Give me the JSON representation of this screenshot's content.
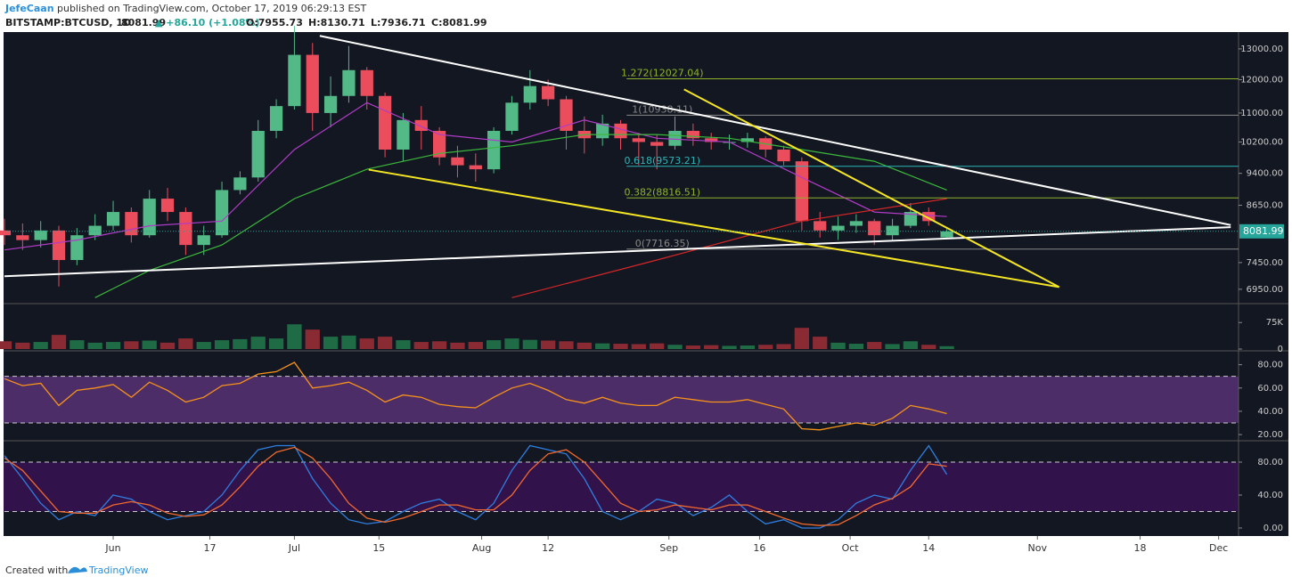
{
  "header": {
    "author": "JefeCaan",
    "published": "published on TradingView.com, October 17, 2019 06:29:13 EST",
    "symbol": "BITSTAMP:BTCUSD, 1D",
    "price": "8081.99",
    "change": "▲ +86.10 (+1.08%)",
    "ohlc": [
      "O:7955.73",
      "H:8130.71",
      "L:7936.71",
      "C:8081.99"
    ]
  },
  "chart_data": [
    {
      "type": "candlestick",
      "log_scale": true,
      "up_color": "#53b987",
      "down_color": "#eb4d5c",
      "xlim": [
        0,
        204
      ],
      "ylim": [
        6710,
        13520
      ],
      "xticks": [
        {
          "value": 18,
          "label": "Jun"
        },
        {
          "value": 34,
          "label": "17"
        },
        {
          "value": 48,
          "label": "Jul"
        },
        {
          "value": 62,
          "label": "15"
        },
        {
          "value": 79,
          "label": "Aug"
        },
        {
          "value": 90,
          "label": "12"
        },
        {
          "value": 110,
          "label": "Sep"
        },
        {
          "value": 125,
          "label": "16"
        },
        {
          "value": 140,
          "label": "Oct"
        },
        {
          "value": 153,
          "label": "14"
        },
        {
          "value": 171,
          "label": "Nov"
        },
        {
          "value": 188,
          "label": "18"
        },
        {
          "value": 201,
          "label": "Dec"
        }
      ],
      "yticks": [
        {
          "value": 13000,
          "label": "13000.00"
        },
        {
          "value": 12000,
          "label": "12000.00"
        },
        {
          "value": 11000,
          "label": "11000.00"
        },
        {
          "value": 10200,
          "label": "10200.00"
        },
        {
          "value": 9400,
          "label": "9400.00"
        },
        {
          "value": 8650,
          "label": "8650.00"
        },
        {
          "value": 7450,
          "label": "7450.00"
        },
        {
          "value": 6950,
          "label": "6950.00"
        }
      ],
      "x": [
        0,
        3,
        6,
        9,
        12,
        15,
        18,
        21,
        24,
        27,
        30,
        33,
        36,
        39,
        42,
        45,
        48,
        51,
        54,
        57,
        60,
        63,
        66,
        69,
        72,
        75,
        78,
        81,
        84,
        87,
        90,
        93,
        96,
        99,
        102,
        105,
        108,
        111,
        114,
        117,
        120,
        123,
        126,
        129,
        132,
        135,
        138,
        141,
        144,
        147,
        150,
        153,
        156
      ],
      "open": [
        8100,
        8000,
        7900,
        8100,
        7500,
        8000,
        8200,
        8500,
        8000,
        8800,
        8500,
        7800,
        8000,
        9000,
        9300,
        10500,
        11200,
        12800,
        11000,
        11500,
        12300,
        11500,
        10000,
        10800,
        10500,
        9800,
        9600,
        9500,
        10500,
        11300,
        11800,
        11400,
        10500,
        10300,
        10700,
        10300,
        10200,
        10100,
        10500,
        10300,
        10200,
        10200,
        10300,
        10000,
        9700,
        8300,
        8100,
        8200,
        8300,
        8000,
        8200,
        8500,
        7955.73
      ],
      "high": [
        8350,
        8250,
        8300,
        8200,
        8150,
        8450,
        8750,
        8600,
        9000,
        9050,
        8600,
        8200,
        9200,
        9450,
        10800,
        11400,
        13800,
        13200,
        12100,
        13100,
        12400,
        11600,
        11000,
        11200,
        10600,
        10100,
        9900,
        10600,
        11500,
        12300,
        12000,
        11500,
        10900,
        10950,
        10800,
        10450,
        10400,
        10900,
        10700,
        10450,
        10400,
        10450,
        10350,
        10100,
        9800,
        8500,
        8400,
        8450,
        8350,
        8350,
        8700,
        8600,
        8130.71
      ],
      "low": [
        7800,
        7700,
        7750,
        7000,
        7400,
        7900,
        8100,
        7850,
        7950,
        8300,
        7600,
        7600,
        7950,
        8900,
        9200,
        10300,
        11100,
        10500,
        10600,
        11300,
        11100,
        9800,
        9700,
        10000,
        9600,
        9300,
        9200,
        9400,
        10400,
        11100,
        11200,
        10000,
        9900,
        10100,
        10000,
        9600,
        9500,
        10000,
        10100,
        10000,
        10000,
        10050,
        9800,
        9600,
        8100,
        7950,
        7900,
        8050,
        7800,
        7900,
        8150,
        8200,
        7936.71
      ],
      "close": [
        8000,
        7900,
        8100,
        7500,
        8000,
        8200,
        8500,
        8000,
        8800,
        8500,
        7800,
        8000,
        9000,
        9300,
        10500,
        11200,
        12800,
        11000,
        11500,
        12300,
        11500,
        10000,
        10800,
        10500,
        9800,
        9600,
        9500,
        10500,
        11300,
        11800,
        11400,
        10500,
        10300,
        10700,
        10300,
        10200,
        10100,
        10500,
        10300,
        10200,
        10200,
        10300,
        10000,
        9700,
        8300,
        8100,
        8200,
        8300,
        8000,
        8200,
        8500,
        8300,
        8081.99
      ],
      "last_price": 8081.99,
      "last_price_color": "#26a69a",
      "moving_averages": [
        {
          "color": "#b03cc7",
          "x": [
            0,
            12,
            24,
            36,
            48,
            60,
            72,
            84,
            96,
            108,
            120,
            132,
            144,
            156
          ],
          "values": [
            7700,
            7900,
            8200,
            8300,
            10000,
            11300,
            10400,
            10200,
            10800,
            10300,
            10200,
            9300,
            8500,
            8400
          ]
        },
        {
          "color": "#3cb83c",
          "x": [
            15,
            24,
            36,
            48,
            60,
            72,
            84,
            96,
            108,
            120,
            132,
            144,
            156
          ],
          "values": [
            6800,
            7300,
            7800,
            8800,
            9500,
            9900,
            10100,
            10400,
            10400,
            10300,
            10000,
            9700,
            9000
          ]
        },
        {
          "color": "#d62728",
          "x": [
            84,
            108,
            132,
            156
          ],
          "values": [
            6800,
            7500,
            8300,
            8800
          ]
        }
      ],
      "trendlines": [
        {
          "color": "#ffffff",
          "points": [
            [
              52.2,
              13450
            ],
            [
              203,
              8216
            ]
          ]
        },
        {
          "color": "#ffffff",
          "points": [
            [
              0,
              7190
            ],
            [
              203,
              8170
            ]
          ]
        },
        {
          "color": "#f5e625",
          "points": [
            [
              60.3,
              9490
            ],
            [
              174.6,
              6990
            ]
          ]
        },
        {
          "color": "#f5e625",
          "points": [
            [
              112.5,
              11700
            ],
            [
              174.6,
              6990
            ]
          ]
        }
      ],
      "fib_start": 103,
      "fib_levels": [
        {
          "label": "1.272(12027.04)",
          "value": 12027.04,
          "color": "#8fb32a"
        },
        {
          "label": "1(10938.11)",
          "value": 10938.11,
          "color": "#888888"
        },
        {
          "label": "0.618(9573.21)",
          "value": 9573.21,
          "color": "#2bb5b5"
        },
        {
          "label": "0.382(8816.51)",
          "value": 8816.51,
          "color": "#8fb32a"
        },
        {
          "label": "0(7716.35)",
          "value": 7716.35,
          "color": "#888888"
        }
      ]
    },
    {
      "type": "volume",
      "ylim": [
        0,
        126000
      ],
      "yticks": [
        0,
        {
          "value": 75000,
          "label": "75K"
        }
      ],
      "values": [
        22000,
        18000,
        20000,
        40000,
        25000,
        18000,
        20000,
        22000,
        24000,
        18000,
        30000,
        20000,
        25000,
        28000,
        35000,
        30000,
        70000,
        55000,
        35000,
        38000,
        30000,
        35000,
        25000,
        20000,
        22000,
        18000,
        20000,
        25000,
        30000,
        26000,
        24000,
        22000,
        18000,
        16000,
        15000,
        14000,
        16000,
        12000,
        10000,
        11000,
        9000,
        10000,
        12000,
        14000,
        60000,
        35000,
        18000,
        15000,
        20000,
        14000,
        22000,
        12000,
        8000
      ]
    },
    {
      "type": "line",
      "ylim": [
        17,
        90.4
      ],
      "band": [
        30,
        70
      ],
      "band_color": "#7b3fa3",
      "yticks": [
        {
          "value": 80,
          "label": "80.00"
        },
        {
          "value": 60,
          "label": "60.00"
        },
        {
          "value": 40,
          "label": "40.00"
        },
        {
          "value": 20,
          "label": "20.00"
        }
      ],
      "series": [
        {
          "color": "#f7931a",
          "values": [
            68,
            62,
            64,
            45,
            58,
            60,
            63,
            52,
            65,
            58,
            48,
            52,
            62,
            64,
            72,
            74,
            82,
            60,
            62,
            65,
            58,
            48,
            54,
            52,
            46,
            44,
            43,
            52,
            60,
            64,
            58,
            50,
            47,
            52,
            47,
            45,
            45,
            52,
            50,
            48,
            48,
            50,
            46,
            42,
            25,
            24,
            27,
            30,
            28,
            34,
            45,
            42,
            38
          ]
        }
      ]
    },
    {
      "type": "line",
      "ylim": [
        -7.6,
        103.8
      ],
      "band": [
        20,
        80
      ],
      "band_color": "#4b0f6e",
      "yticks": [
        {
          "value": 80,
          "label": "80.00"
        },
        {
          "value": 40,
          "label": "40.00"
        },
        {
          "value": 0,
          "label": "0.00"
        }
      ],
      "series": [
        {
          "color": "#2f7fe0",
          "values": [
            88,
            60,
            30,
            10,
            20,
            15,
            40,
            35,
            20,
            10,
            15,
            20,
            40,
            70,
            95,
            100,
            100,
            60,
            30,
            10,
            5,
            8,
            20,
            30,
            35,
            20,
            10,
            30,
            70,
            100,
            95,
            90,
            60,
            20,
            10,
            20,
            35,
            30,
            15,
            25,
            40,
            20,
            5,
            10,
            0,
            0,
            10,
            30,
            40,
            35,
            70,
            100,
            65
          ]
        },
        {
          "color": "#f26a2e",
          "values": [
            85,
            70,
            45,
            20,
            18,
            18,
            28,
            32,
            28,
            18,
            14,
            16,
            28,
            50,
            75,
            92,
            98,
            85,
            60,
            30,
            12,
            7,
            12,
            20,
            28,
            28,
            22,
            22,
            40,
            70,
            90,
            95,
            80,
            55,
            30,
            20,
            22,
            28,
            25,
            22,
            28,
            28,
            20,
            12,
            5,
            3,
            4,
            15,
            28,
            36,
            50,
            78,
            75
          ]
        }
      ]
    }
  ],
  "footer": {
    "created_with": "Created with",
    "brand": "TradingView"
  }
}
